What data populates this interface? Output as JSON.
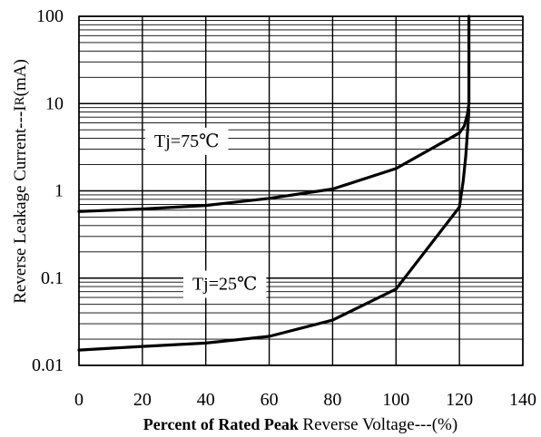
{
  "chart_data": {
    "type": "line",
    "xlabel_part1": "Percent of Rated Peak",
    "xlabel_part2": "Reverse Voltage---(%)",
    "ylabel_part1": "Reverse Leakage Current---I",
    "ylabel_sub": "R",
    "ylabel_part2": "(mA)",
    "xlim": [
      0,
      140
    ],
    "ylim": [
      0.01,
      100
    ],
    "yscale": "log",
    "grid": true,
    "x_ticks": [
      0,
      20,
      40,
      60,
      80,
      100,
      120,
      140
    ],
    "x_tick_labels": [
      "0",
      "20",
      "40",
      "60",
      "80",
      "100",
      "120",
      "140"
    ],
    "y_ticks": [
      0.01,
      0.1,
      1,
      10,
      100
    ],
    "y_tick_labels": [
      "0.01",
      "0.1",
      "1",
      "10",
      "100"
    ],
    "series": [
      {
        "name": "Tj=75℃",
        "label_pos": [
          34,
          3.7
        ],
        "x": [
          0,
          20,
          40,
          60,
          80,
          100,
          120,
          121.5,
          122.5,
          123,
          123,
          123
        ],
        "y": [
          0.58,
          0.62,
          0.68,
          0.82,
          1.05,
          1.8,
          4.6,
          5.5,
          7.5,
          10,
          30,
          100
        ]
      },
      {
        "name": "Tj=25℃",
        "label_pos": [
          46,
          0.085
        ],
        "x": [
          0,
          20,
          40,
          60,
          80,
          100,
          120,
          121.2,
          122,
          122.6,
          123
        ],
        "y": [
          0.015,
          0.0165,
          0.018,
          0.0215,
          0.033,
          0.075,
          0.65,
          1.3,
          2.5,
          5.0,
          8.5
        ]
      }
    ],
    "colors": {
      "line": "#000000",
      "grid": "#000000",
      "background": "#ffffff"
    }
  }
}
